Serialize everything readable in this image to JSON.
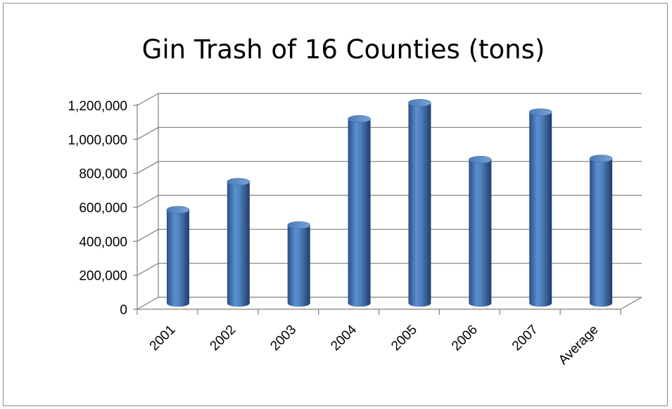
{
  "chart_data": {
    "type": "bar",
    "title": "Gin Trash of 16 Counties (tons)",
    "xlabel": "",
    "ylabel": "",
    "categories": [
      "2001",
      "2002",
      "2003",
      "2004",
      "2005",
      "2006",
      "2007",
      "Average"
    ],
    "series": [
      {
        "values": [
          550000,
          715000,
          460000,
          1085000,
          1180000,
          845000,
          1125000,
          852000
        ]
      }
    ],
    "ylim": [
      0,
      1200000
    ],
    "yticks": [
      0,
      200000,
      400000,
      600000,
      800000,
      1000000,
      1200000
    ],
    "ytick_labels": [
      "0",
      "200,000",
      "400,000",
      "600,000",
      "800,000",
      "1,000,000",
      "1,200,000"
    ],
    "grid": true,
    "legend": "none",
    "bar_shape": "cylinder",
    "bar_color": "#4f81bd"
  }
}
